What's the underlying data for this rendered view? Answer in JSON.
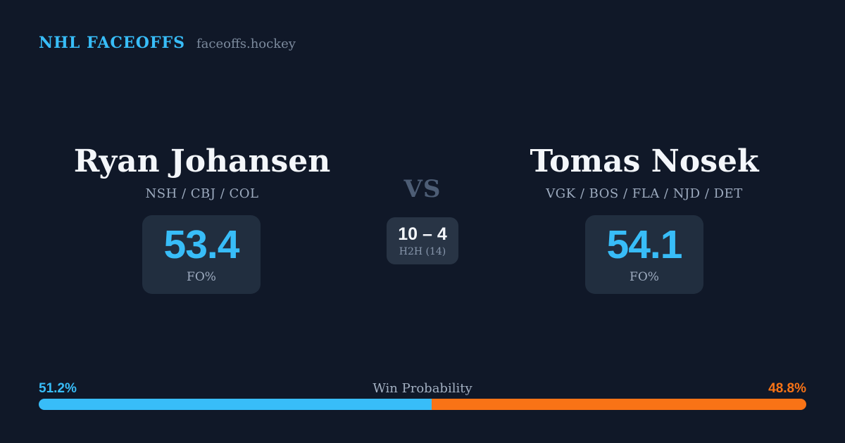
{
  "brand": {
    "title": "NHL FACEOFFS",
    "domain": "faceoffs.hockey"
  },
  "players": {
    "left": {
      "name": "Ryan Johansen",
      "teams": "NSH / CBJ / COL",
      "stat_value": "53.4",
      "stat_label": "FO%"
    },
    "right": {
      "name": "Tomas Nosek",
      "teams": "VGK / BOS / FLA / NJD / DET",
      "stat_value": "54.1",
      "stat_label": "FO%"
    }
  },
  "matchup": {
    "vs_label": "VS",
    "h2h_score": "10 – 4",
    "h2h_label": "H2H (14)"
  },
  "win_bar": {
    "label": "Win Probability",
    "left_pct_label": "51.2%",
    "right_pct_label": "48.8%",
    "left_pct": 51.2,
    "right_pct": 48.8
  },
  "colors": {
    "background": "#101828",
    "card": "#212e3f",
    "card_center": "#283445",
    "accent_blue": "#38bdf8",
    "accent_orange": "#f97316",
    "text_primary": "#f3f6fa",
    "text_muted": "#9dabbf",
    "text_faint": "#7c8a9d",
    "vs_color": "#4d5d75"
  }
}
